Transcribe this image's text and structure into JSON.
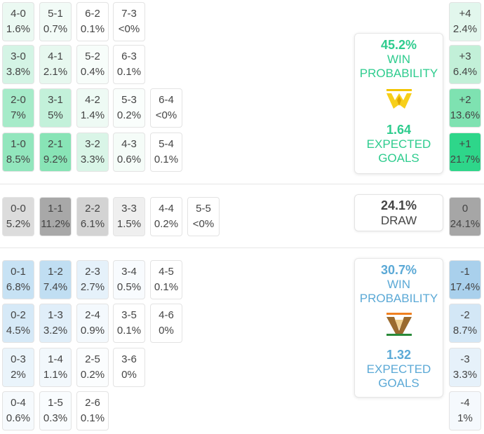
{
  "home": {
    "win_pct": "45.2%",
    "win_label_1": "WIN",
    "win_label_2": "PROBABILITY",
    "xg": "1.64",
    "xg_label_1": "EXPECTED",
    "xg_label_2": "GOALS",
    "color": "#2ecc8e",
    "logo_icon": "home-team-crest-icon"
  },
  "draw": {
    "pct": "24.1%",
    "label": "DRAW"
  },
  "away": {
    "win_pct": "30.7%",
    "win_label_1": "WIN",
    "win_label_2": "PROBABILITY",
    "xg": "1.32",
    "xg_label_1": "EXPECTED",
    "xg_label_2": "GOALS",
    "color": "#5ba9d6",
    "logo_icon": "away-team-crest-icon"
  },
  "home_rows": [
    [
      {
        "score": "4-0",
        "pct": "1.6%",
        "bg": "#ebf9f2"
      },
      {
        "score": "5-1",
        "pct": "0.7%",
        "bg": "#f2fbf7"
      },
      {
        "score": "6-2",
        "pct": "0.1%",
        "bg": "#ffffff"
      },
      {
        "score": "7-3",
        "pct": "<0%",
        "bg": "#ffffff"
      }
    ],
    [
      {
        "score": "3-0",
        "pct": "3.8%",
        "bg": "#d4f4e5"
      },
      {
        "score": "4-1",
        "pct": "2.1%",
        "bg": "#e7f8ef"
      },
      {
        "score": "5-2",
        "pct": "0.4%",
        "bg": "#f7fdfa"
      },
      {
        "score": "6-3",
        "pct": "0.1%",
        "bg": "#ffffff"
      }
    ],
    [
      {
        "score": "2-0",
        "pct": "7%",
        "bg": "#a6ebc9"
      },
      {
        "score": "3-1",
        "pct": "5%",
        "bg": "#c3f1da"
      },
      {
        "score": "4-2",
        "pct": "1.4%",
        "bg": "#eefaf4"
      },
      {
        "score": "5-3",
        "pct": "0.2%",
        "bg": "#fafefc"
      },
      {
        "score": "6-4",
        "pct": "<0%",
        "bg": "#ffffff"
      }
    ],
    [
      {
        "score": "1-0",
        "pct": "8.5%",
        "bg": "#92e6bd"
      },
      {
        "score": "2-1",
        "pct": "9.2%",
        "bg": "#88e4b6"
      },
      {
        "score": "3-2",
        "pct": "3.3%",
        "bg": "#d9f5e7"
      },
      {
        "score": "4-3",
        "pct": "0.6%",
        "bg": "#f5fcf8"
      },
      {
        "score": "5-4",
        "pct": "0.1%",
        "bg": "#ffffff"
      }
    ]
  ],
  "draw_row": [
    {
      "score": "0-0",
      "pct": "5.2%",
      "bg": "#dcdcdc"
    },
    {
      "score": "1-1",
      "pct": "11.2%",
      "bg": "#a8a8a8"
    },
    {
      "score": "2-2",
      "pct": "6.1%",
      "bg": "#d3d3d3"
    },
    {
      "score": "3-3",
      "pct": "1.5%",
      "bg": "#efefef"
    },
    {
      "score": "4-4",
      "pct": "0.2%",
      "bg": "#ffffff"
    },
    {
      "score": "5-5",
      "pct": "<0%",
      "bg": "#ffffff"
    }
  ],
  "away_rows": [
    [
      {
        "score": "0-1",
        "pct": "6.8%",
        "bg": "#c7e2f4"
      },
      {
        "score": "1-2",
        "pct": "7.4%",
        "bg": "#c0def2"
      },
      {
        "score": "2-3",
        "pct": "2.7%",
        "bg": "#e5f1fa"
      },
      {
        "score": "3-4",
        "pct": "0.5%",
        "bg": "#f8fbfe"
      },
      {
        "score": "4-5",
        "pct": "0.1%",
        "bg": "#ffffff"
      }
    ],
    [
      {
        "score": "0-2",
        "pct": "4.5%",
        "bg": "#d6e9f7"
      },
      {
        "score": "1-3",
        "pct": "3.2%",
        "bg": "#e0eef9"
      },
      {
        "score": "2-4",
        "pct": "0.9%",
        "bg": "#f4f9fd"
      },
      {
        "score": "3-5",
        "pct": "0.1%",
        "bg": "#ffffff"
      },
      {
        "score": "4-6",
        "pct": "0%",
        "bg": "#ffffff"
      }
    ],
    [
      {
        "score": "0-3",
        "pct": "2%",
        "bg": "#eaf4fb"
      },
      {
        "score": "1-4",
        "pct": "1.1%",
        "bg": "#f2f8fc"
      },
      {
        "score": "2-5",
        "pct": "0.2%",
        "bg": "#fbfdfe"
      },
      {
        "score": "3-6",
        "pct": "0%",
        "bg": "#ffffff"
      }
    ],
    [
      {
        "score": "0-4",
        "pct": "0.6%",
        "bg": "#f6fafd"
      },
      {
        "score": "1-5",
        "pct": "0.3%",
        "bg": "#f9fcfe"
      },
      {
        "score": "2-6",
        "pct": "0.1%",
        "bg": "#ffffff"
      }
    ]
  ],
  "margins": [
    {
      "label": "+4",
      "pct": "2.4%",
      "bg": "#e2f7ed"
    },
    {
      "label": "+3",
      "pct": "6.4%",
      "bg": "#c2f0d8"
    },
    {
      "label": "+2",
      "pct": "13.6%",
      "bg": "#7ee2b1"
    },
    {
      "label": "+1",
      "pct": "21.7%",
      "bg": "#2ed68a"
    },
    {
      "label": "0",
      "pct": "24.1%",
      "bg": "#a6a6a6"
    },
    {
      "label": "-1",
      "pct": "17.4%",
      "bg": "#a9d0ec"
    },
    {
      "label": "-2",
      "pct": "8.7%",
      "bg": "#d3e7f6"
    },
    {
      "label": "-3",
      "pct": "3.3%",
      "bg": "#e6f1fa"
    },
    {
      "label": "-4",
      "pct": "1%",
      "bg": "#f5f9fd"
    }
  ]
}
